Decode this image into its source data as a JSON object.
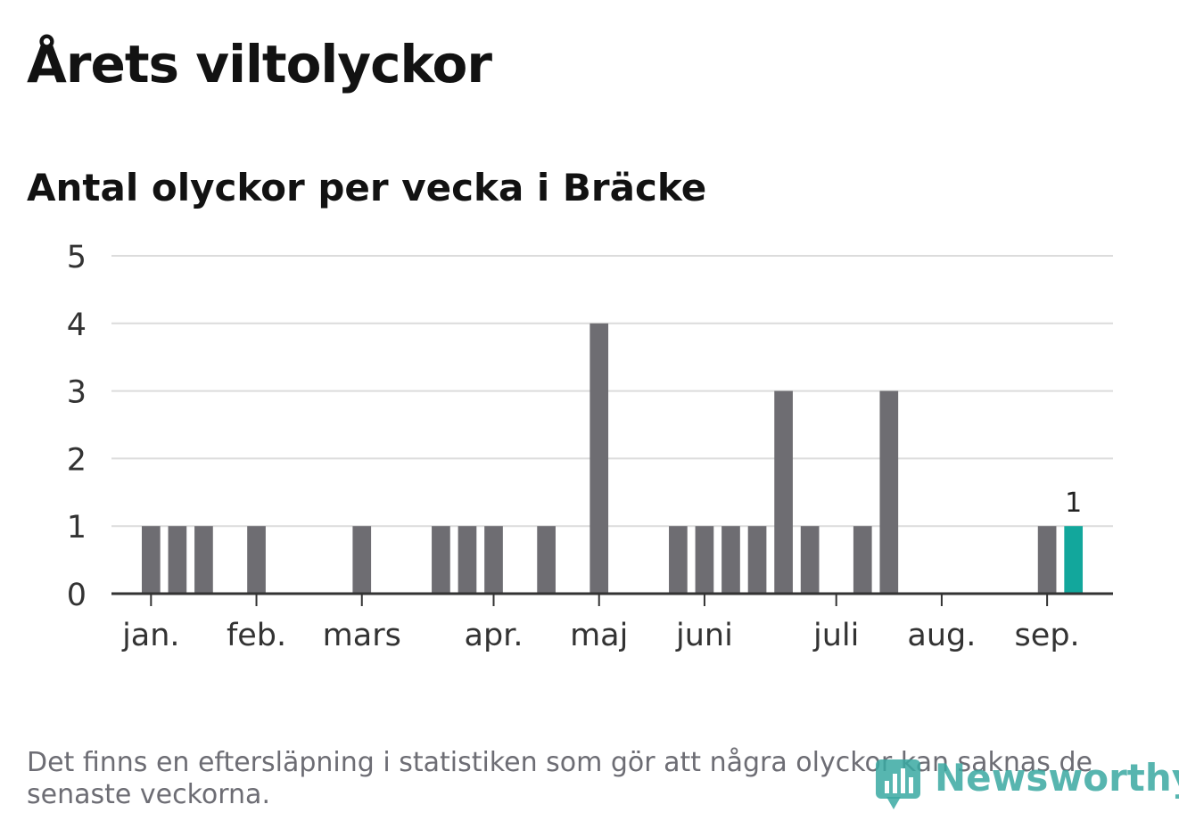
{
  "title": "Årets viltolyckor",
  "subtitle": "Antal olyckor per vecka i Bräcke",
  "note": "Det finns en eftersläpning i statistiken som gör att några olyckor kan saknas de senaste veckorna.",
  "logo_text": "Newsworthy",
  "colors": {
    "bar": "#6e6d72",
    "highlight": "#12a79c",
    "grid": "#dcdcdc",
    "axis": "#333333"
  },
  "chart_data": {
    "type": "bar",
    "ylim": [
      0,
      5
    ],
    "yticks": [
      0,
      1,
      2,
      3,
      4,
      5
    ],
    "xlim": [
      0.5,
      38.5
    ],
    "grid": true,
    "month_ticks": [
      {
        "label": "jan.",
        "x": 2
      },
      {
        "label": "feb.",
        "x": 6
      },
      {
        "label": "mars",
        "x": 10
      },
      {
        "label": "apr.",
        "x": 15
      },
      {
        "label": "maj",
        "x": 19
      },
      {
        "label": "juni",
        "x": 23
      },
      {
        "label": "juli",
        "x": 28
      },
      {
        "label": "aug.",
        "x": 32
      },
      {
        "label": "sep.",
        "x": 36
      }
    ],
    "series": [
      {
        "x": [
          1,
          2,
          3,
          4,
          5,
          6,
          7,
          8,
          9,
          10,
          11,
          12,
          13,
          14,
          15,
          16,
          17,
          18,
          19,
          20,
          21,
          22,
          23,
          24,
          25,
          26,
          27,
          28,
          29,
          30,
          31,
          32,
          33,
          34,
          35,
          36,
          37
        ],
        "values": [
          0,
          1,
          1,
          1,
          0,
          1,
          0,
          0,
          0,
          1,
          0,
          0,
          1,
          1,
          1,
          0,
          1,
          0,
          4,
          0,
          0,
          1,
          1,
          1,
          1,
          3,
          1,
          0,
          1,
          3,
          0,
          0,
          0,
          0,
          0,
          1,
          1
        ]
      }
    ],
    "highlight": {
      "x": 37,
      "value": 1,
      "label": "1"
    }
  }
}
